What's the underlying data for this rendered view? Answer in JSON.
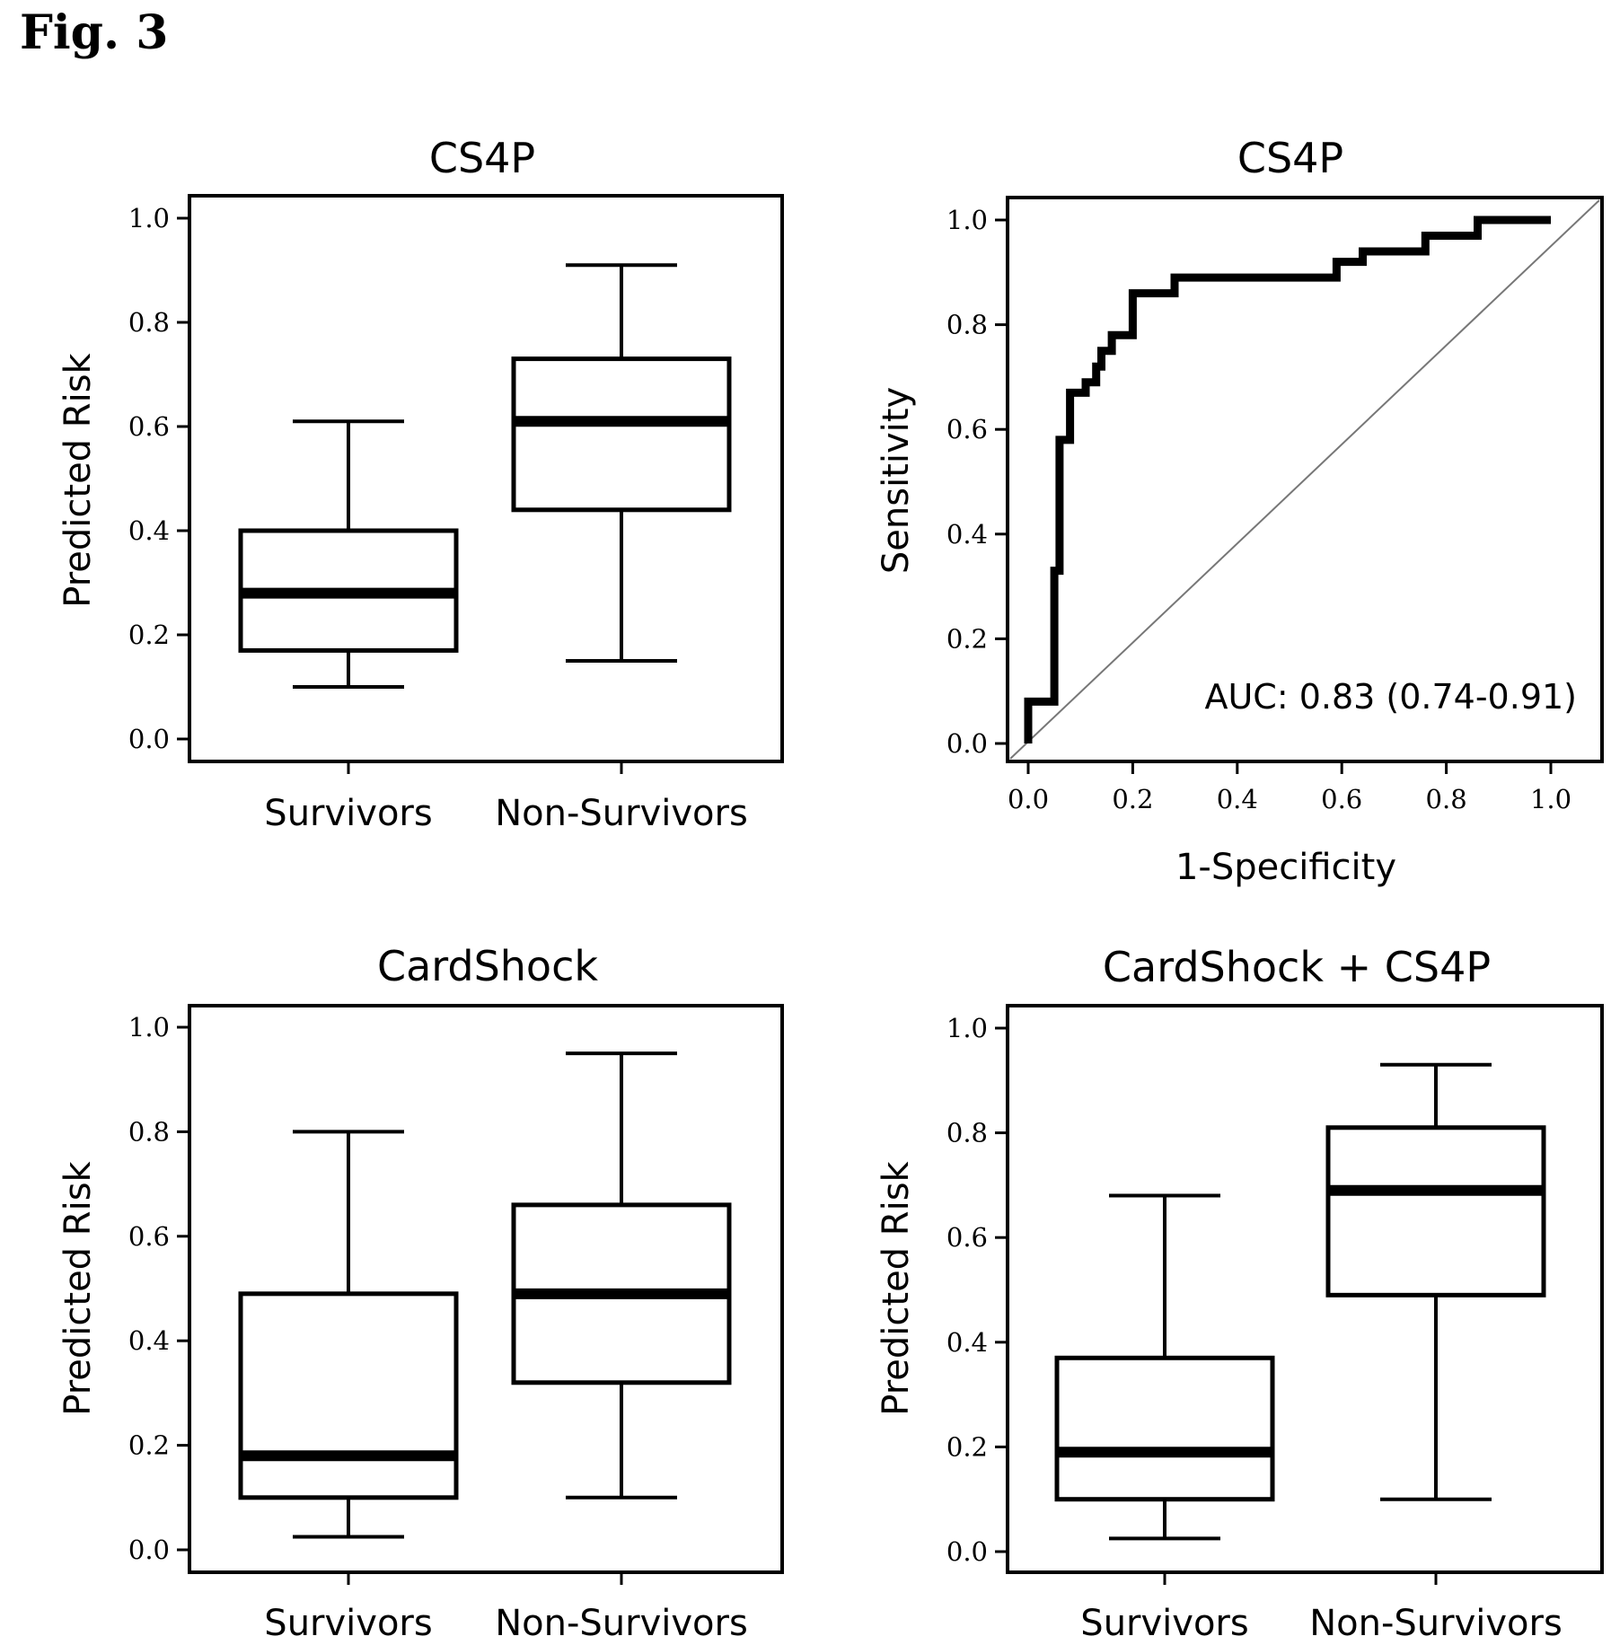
{
  "figure_label": "Fig. 3",
  "chart_data": [
    {
      "type": "box",
      "title": "CS4P",
      "xlabel": "",
      "ylabel": "Predicted Risk",
      "ylim": [
        0.0,
        1.0
      ],
      "yticks": [
        "0.0",
        "0.2",
        "0.4",
        "0.6",
        "0.8",
        "1.0"
      ],
      "categories": [
        "Survivors",
        "Non-Survivors"
      ],
      "boxes": [
        {
          "min": 0.1,
          "q1": 0.17,
          "median": 0.28,
          "q3": 0.4,
          "max": 0.61
        },
        {
          "min": 0.15,
          "q1": 0.44,
          "median": 0.61,
          "q3": 0.73,
          "max": 0.91
        }
      ]
    },
    {
      "type": "line",
      "title": "CS4P",
      "xlabel": "1-Specificity",
      "ylabel": "Sensitivity",
      "xlim": [
        0.0,
        1.0
      ],
      "ylim": [
        0.0,
        1.0
      ],
      "xticks": [
        "0.0",
        "0.2",
        "0.4",
        "0.6",
        "0.8",
        "1.0"
      ],
      "yticks": [
        "0.0",
        "0.2",
        "0.4",
        "0.6",
        "0.8",
        "1.0"
      ],
      "annotation": "AUC: 0.83 (0.74-0.91)",
      "diagonal": true,
      "roc": [
        [
          0.0,
          0.0
        ],
        [
          0.0,
          0.08
        ],
        [
          0.05,
          0.08
        ],
        [
          0.05,
          0.33
        ],
        [
          0.06,
          0.33
        ],
        [
          0.06,
          0.58
        ],
        [
          0.08,
          0.58
        ],
        [
          0.08,
          0.67
        ],
        [
          0.11,
          0.67
        ],
        [
          0.11,
          0.69
        ],
        [
          0.13,
          0.69
        ],
        [
          0.13,
          0.72
        ],
        [
          0.14,
          0.72
        ],
        [
          0.14,
          0.75
        ],
        [
          0.16,
          0.75
        ],
        [
          0.16,
          0.78
        ],
        [
          0.2,
          0.78
        ],
        [
          0.2,
          0.86
        ],
        [
          0.28,
          0.86
        ],
        [
          0.28,
          0.89
        ],
        [
          0.59,
          0.89
        ],
        [
          0.59,
          0.92
        ],
        [
          0.64,
          0.92
        ],
        [
          0.64,
          0.94
        ],
        [
          0.76,
          0.94
        ],
        [
          0.76,
          0.97
        ],
        [
          0.86,
          0.97
        ],
        [
          0.86,
          1.0
        ],
        [
          1.0,
          1.0
        ]
      ]
    },
    {
      "type": "box",
      "title": "CardShock",
      "xlabel": "",
      "ylabel": "Predicted Risk",
      "ylim": [
        0.0,
        1.0
      ],
      "yticks": [
        "0.0",
        "0.2",
        "0.4",
        "0.6",
        "0.8",
        "1.0"
      ],
      "categories": [
        "Survivors",
        "Non-Survivors"
      ],
      "boxes": [
        {
          "min": 0.025,
          "q1": 0.1,
          "median": 0.18,
          "q3": 0.49,
          "max": 0.8
        },
        {
          "min": 0.1,
          "q1": 0.32,
          "median": 0.49,
          "q3": 0.66,
          "max": 0.95
        }
      ]
    },
    {
      "type": "box",
      "title": "CardShock + CS4P",
      "xlabel": "",
      "ylabel": "Predicted Risk",
      "ylim": [
        0.0,
        1.0
      ],
      "yticks": [
        "0.0",
        "0.2",
        "0.4",
        "0.6",
        "0.8",
        "1.0"
      ],
      "categories": [
        "Survivors",
        "Non-Survivors"
      ],
      "boxes": [
        {
          "min": 0.025,
          "q1": 0.1,
          "median": 0.19,
          "q3": 0.37,
          "max": 0.68
        },
        {
          "min": 0.1,
          "q1": 0.49,
          "median": 0.69,
          "q3": 0.81,
          "max": 0.93
        }
      ]
    }
  ]
}
